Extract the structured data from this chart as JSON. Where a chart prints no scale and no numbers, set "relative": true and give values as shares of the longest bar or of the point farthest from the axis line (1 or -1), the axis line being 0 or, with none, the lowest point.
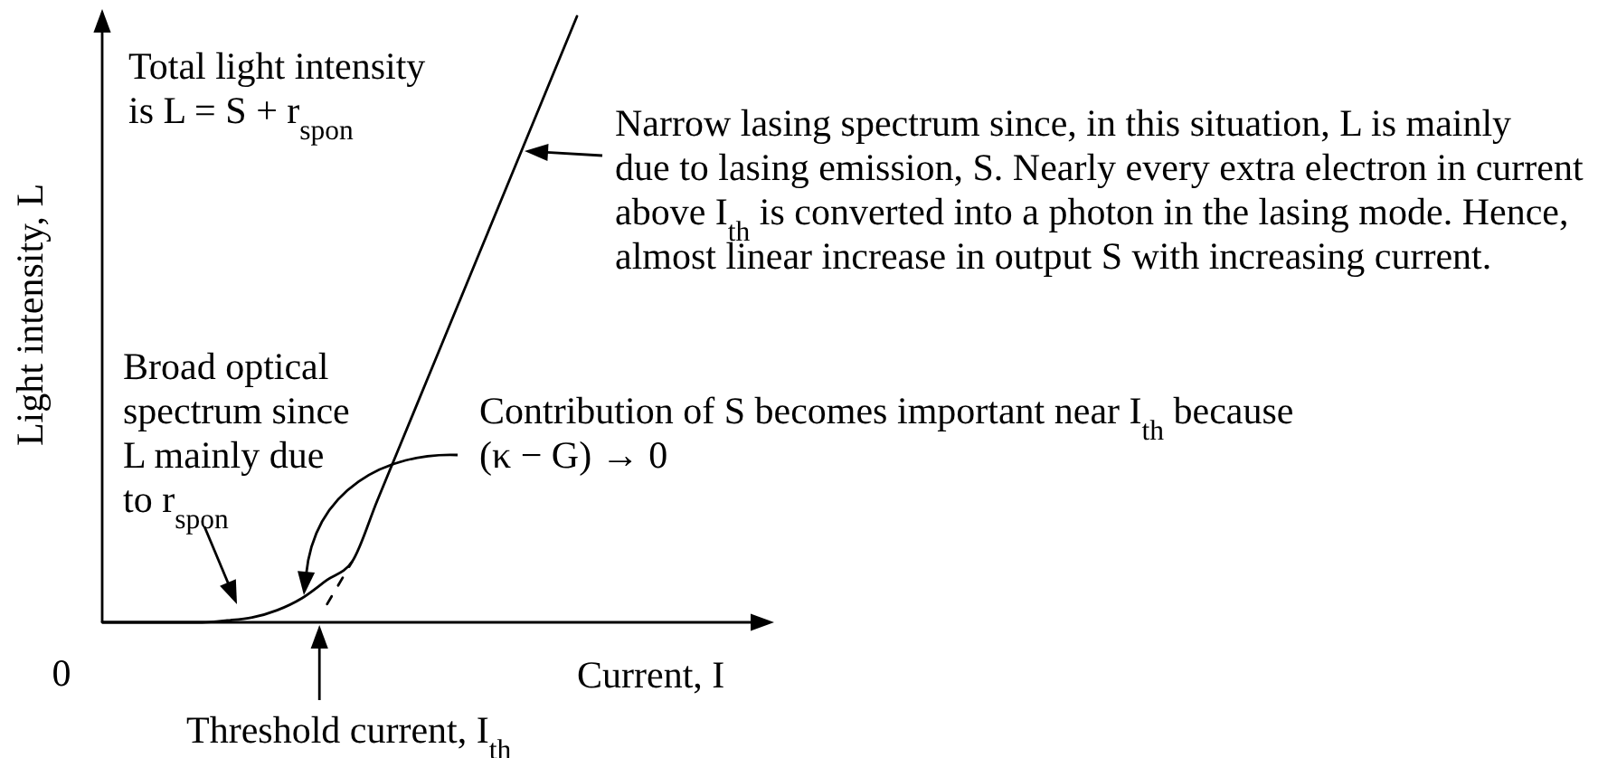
{
  "chart_data": {
    "type": "line",
    "relative": true,
    "xlabel": "Current, I",
    "ylabel": "Light intensity, L",
    "categories": [
      null,
      null,
      null,
      null,
      null,
      null,
      null,
      null,
      null,
      null,
      null,
      null,
      null,
      null,
      null,
      null,
      null,
      null,
      null,
      null
    ],
    "series": [
      {
        "color": "#000000",
        "values": [
          0,
          0,
          0,
          0,
          0,
          0.003,
          0.008,
          0.02,
          0.04,
          0.07,
          0.1,
          0.2,
          0.3,
          0.4,
          0.5,
          0.6,
          0.7,
          0.8,
          0.9,
          1
        ]
      },
      {
        "color": "#000000",
        "line_style": "dashed",
        "values": [
          null,
          null,
          null,
          null,
          null,
          null,
          null,
          null,
          null,
          0.03,
          0.1,
          null,
          null,
          null,
          null,
          null,
          null,
          null,
          null,
          null
        ]
      }
    ],
    "annotations": [
      "Total light intensity\nis L = S + r$_{spon}$",
      "Narrow lasing spectrum since, in this situation, L is mainly\ndue to lasing emission, S. Nearly every extra electron in current\nabove I$_{th}$ is converted into a photon in the lasing mode. Hence,\nalmost linear increase in output S with increasing current.",
      "Broad optical\nspectrum since\nL mainly due\nto r$_{spon}$",
      "Contribution of S becomes important near I$_{th}$ because\n(κ − G) → 0",
      "Threshold current, I$_{th}$",
      "0"
    ]
  }
}
